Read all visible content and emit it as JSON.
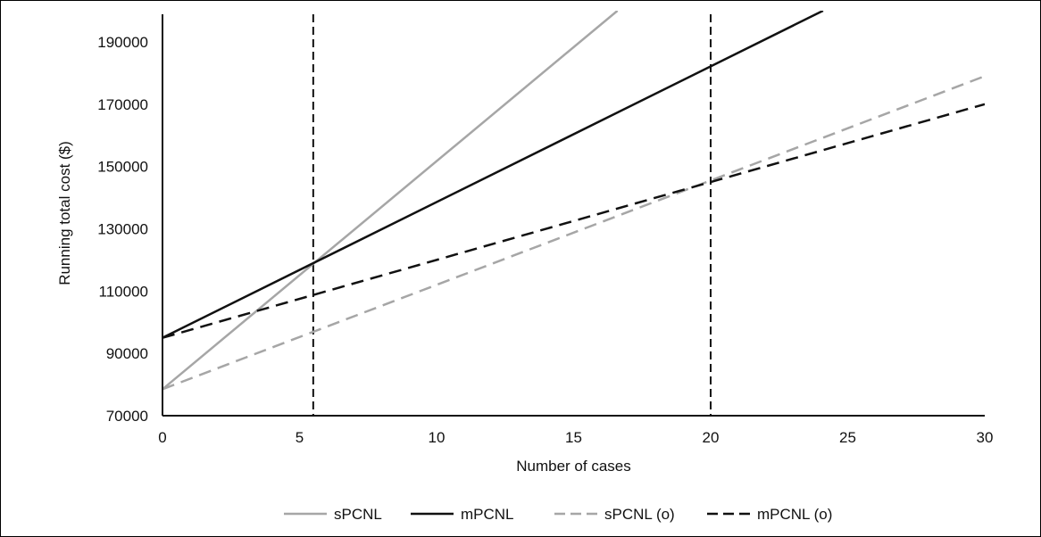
{
  "chart_data": {
    "type": "line",
    "title": "",
    "xlabel": "Number of cases",
    "ylabel": "Running total cost ($)",
    "xlim": [
      0,
      30
    ],
    "ylim": [
      70000,
      200000
    ],
    "x_ticks": [
      0,
      5,
      10,
      15,
      20,
      25,
      30
    ],
    "y_ticks": [
      70000,
      90000,
      110000,
      130000,
      150000,
      170000,
      190000
    ],
    "grid": false,
    "legend_position": "bottom",
    "series": [
      {
        "name": "sPCNL",
        "color": "#a6a6a6",
        "dash": "solid",
        "x": [
          0,
          16.6
        ],
        "y": [
          78500,
          200000
        ]
      },
      {
        "name": "mPCNL",
        "color": "#111111",
        "dash": "solid",
        "x": [
          0,
          24.1
        ],
        "y": [
          95000,
          200000
        ]
      },
      {
        "name": "sPCNL (o)",
        "color": "#a6a6a6",
        "dash": "dashed",
        "x": [
          0,
          30
        ],
        "y": [
          78500,
          179000
        ]
      },
      {
        "name": "mPCNL (o)",
        "color": "#111111",
        "dash": "dashed",
        "x": [
          0,
          30
        ],
        "y": [
          95000,
          170000
        ]
      }
    ],
    "reference_lines": [
      {
        "axis": "x",
        "value": 5.5,
        "color": "#111111",
        "dash": "dashed"
      },
      {
        "axis": "x",
        "value": 20,
        "color": "#111111",
        "dash": "dashed"
      }
    ]
  }
}
